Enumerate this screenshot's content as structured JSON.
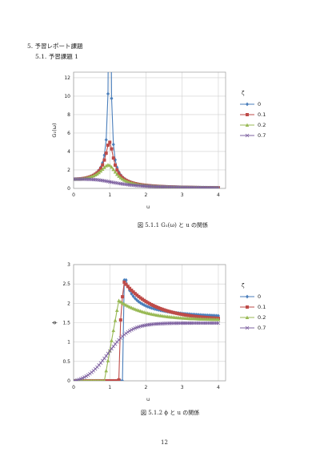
{
  "section_heading": "5. 予習レポート課題",
  "subsection_heading": "5.1. 予習課題 1",
  "page_number": "12",
  "series_colors": [
    "#4a7ebb",
    "#be4b48",
    "#98b954",
    "#7d60a0"
  ],
  "series_markers": [
    "diamond",
    "square",
    "triangle",
    "cross"
  ],
  "chart_data": [
    {
      "type": "line",
      "caption": "図 5.1.1 G₁(ω) と u の関係",
      "xlabel": "u",
      "ylabel": "G₁(ω)",
      "xlim": [
        0,
        4.2
      ],
      "ylim": [
        0,
        12.6
      ],
      "xticks": [
        "0",
        "1",
        "2",
        "3",
        "4"
      ],
      "yticks": [
        "0",
        "2",
        "4",
        "6",
        "8",
        "10",
        "12"
      ],
      "grid": true,
      "legend_title": "ζ",
      "legend_position": "right",
      "series": [
        {
          "name": "0",
          "zeta": 0
        },
        {
          "name": "0.1",
          "zeta": 0.1
        },
        {
          "name": "0.2",
          "zeta": 0.2
        },
        {
          "name": "0.7",
          "zeta": 0.7
        }
      ]
    },
    {
      "type": "line",
      "caption": "図 5.1.2 ϕ と u の関係",
      "xlabel": "u",
      "ylabel": "ϕ",
      "xlim": [
        0,
        4.2
      ],
      "ylim": [
        0,
        3
      ],
      "xticks": [
        "0",
        "1",
        "2",
        "3",
        "4"
      ],
      "yticks": [
        "0",
        "0.5",
        "1",
        "1.5",
        "2",
        "2.5",
        "3"
      ],
      "grid": true,
      "legend_title": "ζ",
      "legend_position": "right",
      "series": [
        {
          "name": "0",
          "zeta": 0
        },
        {
          "name": "0.1",
          "zeta": 0.1
        },
        {
          "name": "0.2",
          "zeta": 0.2
        },
        {
          "name": "0.7",
          "zeta": 0.7
        }
      ]
    }
  ]
}
